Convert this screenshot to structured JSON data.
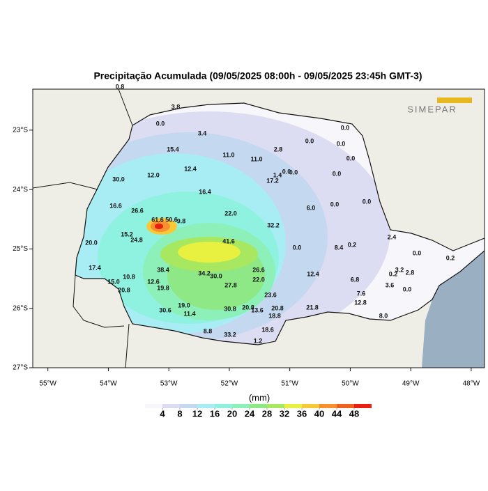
{
  "map": {
    "title": "Precipitação Acumulada (09/05/2025 08:00h - 09/05/2025 23:45h GMT-3)",
    "logo": "SIMEPAR",
    "xlim": [
      -55.25,
      -47.78
    ],
    "ylim": [
      -27,
      -22.31
    ],
    "xticks": [
      {
        "value": -55,
        "label": "55°W"
      },
      {
        "value": -54,
        "label": "54°W"
      },
      {
        "value": -53,
        "label": "53°W"
      },
      {
        "value": -52,
        "label": "52°W"
      },
      {
        "value": -51,
        "label": "51°W"
      },
      {
        "value": -50,
        "label": "50°W"
      },
      {
        "value": -49,
        "label": "49°W"
      },
      {
        "value": -48,
        "label": "48°W"
      }
    ],
    "yticks": [
      {
        "value": -23,
        "label": "23°S"
      },
      {
        "value": -24,
        "label": "24°S"
      },
      {
        "value": -25,
        "label": "25°S"
      },
      {
        "value": -26,
        "label": "26°S"
      },
      {
        "value": -27,
        "label": "27°S"
      }
    ],
    "stations": [
      "0.8",
      "3.8",
      "0.0",
      "3.4",
      "15.4",
      "11.0",
      "2.8",
      "11.0",
      "0.0",
      "0.0",
      "0.0",
      "0.0",
      "12.4",
      "12.0",
      "30.0",
      "1.4",
      "0.0",
      "0.0",
      "17.2",
      "0.0",
      "16.4",
      "16.6",
      "26.6",
      "22.0",
      "6.0",
      "0.0",
      "0.0",
      "61.6",
      "50.6",
      "9.8",
      "32.2",
      "15.2",
      "24.8",
      "20.0",
      "41.6",
      "0.0",
      "2.4",
      "8.4",
      "0.2",
      "17.4",
      "38.4",
      "34.2",
      "30.0",
      "26.6",
      "12.4",
      "22.0",
      "10.8",
      "15.0",
      "12.6",
      "19.8",
      "27.8",
      "20.8",
      "6.8",
      "3.6",
      "23.6",
      "7.6",
      "30.6",
      "19.0",
      "11.4",
      "30.8",
      "20.8",
      "13.6",
      "20.8",
      "21.8",
      "12.8",
      "18.8",
      "8.8",
      "33.2",
      "1.2",
      "18.6",
      "3.2",
      "2.8",
      "0.2",
      "0.0",
      "0.2",
      "0.0",
      "8.0"
    ]
  },
  "colorbar": {
    "label": "(mm)",
    "ticks": [
      4,
      8,
      12,
      16,
      20,
      24,
      28,
      32,
      36,
      40,
      44,
      48
    ],
    "colors": [
      "#f7f7fb",
      "#dcdcf2",
      "#c4d8f0",
      "#a8ecf4",
      "#8ff2e0",
      "#8cf0b8",
      "#8ee886",
      "#a8e860",
      "#e8f040",
      "#f8c838",
      "#f89030",
      "#f06020",
      "#e82010"
    ]
  }
}
